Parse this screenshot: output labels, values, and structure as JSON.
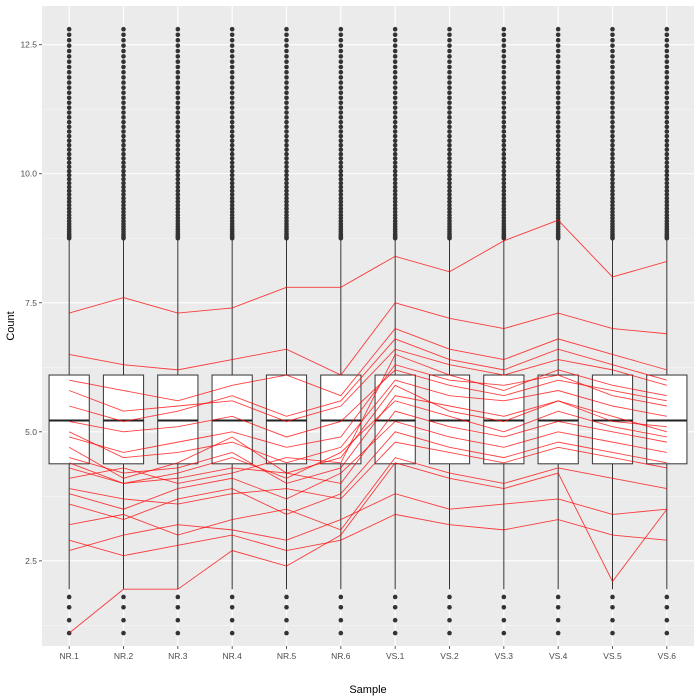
{
  "chart_data": {
    "type": "boxplot",
    "title": "",
    "xlabel": "Sample",
    "ylabel": "Count",
    "ylim": [
      0.85,
      13.25
    ],
    "yticks": [
      2.5,
      5.0,
      7.5,
      10.0,
      12.5
    ],
    "ytick_labels": [
      "2.5",
      "5.0",
      "7.5",
      "10.0",
      "12.5"
    ],
    "categories": [
      "NR.1",
      "NR.2",
      "NR.3",
      "NR.4",
      "NR.5",
      "NR.6",
      "VS.1",
      "VS.2",
      "VS.3",
      "VS.4",
      "VS.5",
      "VS.6"
    ],
    "grid": true,
    "legend": "none",
    "box": {
      "q1": 4.38,
      "median": 5.22,
      "q3": 6.1,
      "whisker_low": 1.95,
      "whisker_high": 8.72
    },
    "outliers_low": [
      1.1,
      1.35,
      1.6,
      1.8
    ],
    "outliers_high_range": [
      8.75,
      12.8
    ],
    "profile_lines": {
      "color": "#ff0000",
      "values": [
        [
          4.3,
          4.0,
          4.2,
          4.5,
          4.1,
          4.6,
          5.6,
          5.3,
          5.0,
          5.4,
          5.1,
          4.9
        ],
        [
          5.0,
          4.5,
          4.6,
          4.8,
          4.4,
          4.7,
          6.0,
          5.7,
          5.6,
          5.8,
          5.5,
          5.3
        ],
        [
          3.8,
          3.5,
          3.9,
          4.1,
          3.7,
          4.2,
          5.2,
          4.9,
          4.7,
          5.0,
          4.8,
          4.6
        ],
        [
          6.5,
          6.3,
          6.2,
          6.4,
          6.6,
          6.1,
          7.5,
          7.2,
          7.0,
          7.3,
          7.0,
          6.9
        ],
        [
          2.7,
          3.0,
          3.2,
          3.1,
          2.9,
          3.3,
          3.8,
          3.5,
          3.6,
          3.7,
          3.4,
          3.5
        ],
        [
          7.3,
          7.6,
          7.3,
          7.4,
          7.8,
          7.8,
          8.4,
          8.1,
          8.7,
          9.1,
          8.0,
          8.3
        ],
        [
          4.1,
          4.3,
          4.0,
          4.2,
          4.5,
          4.4,
          6.5,
          6.1,
          5.8,
          6.2,
          5.9,
          5.7
        ],
        [
          5.5,
          5.2,
          5.4,
          5.7,
          5.3,
          5.6,
          6.8,
          6.4,
          6.2,
          6.6,
          6.3,
          6.0
        ],
        [
          3.2,
          3.4,
          3.0,
          3.3,
          3.5,
          3.1,
          4.5,
          4.2,
          4.0,
          4.3,
          4.1,
          3.9
        ],
        [
          4.7,
          4.1,
          4.4,
          4.9,
          4.2,
          4.5,
          5.9,
          5.4,
          5.2,
          5.6,
          5.3,
          5.0
        ],
        [
          1.1,
          1.95,
          1.95,
          2.7,
          2.4,
          3.0,
          4.4,
          4.1,
          3.9,
          4.2,
          2.1,
          3.5
        ],
        [
          6.0,
          5.8,
          5.6,
          5.9,
          6.1,
          5.7,
          7.0,
          6.6,
          6.4,
          6.8,
          6.5,
          6.2
        ],
        [
          3.6,
          3.3,
          3.7,
          3.9,
          3.4,
          3.8,
          5.0,
          4.7,
          4.5,
          4.8,
          4.6,
          4.4
        ],
        [
          4.5,
          4.2,
          4.3,
          4.6,
          4.0,
          4.3,
          5.7,
          5.5,
          5.3,
          5.6,
          5.2,
          5.1
        ],
        [
          5.2,
          5.0,
          5.1,
          5.3,
          4.9,
          5.2,
          6.2,
          5.9,
          5.7,
          6.0,
          5.8,
          5.6
        ],
        [
          2.9,
          2.6,
          2.8,
          3.0,
          2.7,
          2.9,
          3.4,
          3.2,
          3.1,
          3.3,
          3.0,
          2.9
        ],
        [
          4.9,
          4.6,
          4.8,
          5.0,
          4.7,
          4.9,
          6.3,
          6.0,
          5.9,
          6.1,
          5.7,
          5.5
        ],
        [
          3.9,
          3.7,
          3.6,
          3.8,
          3.9,
          3.7,
          4.8,
          4.6,
          4.4,
          4.7,
          4.5,
          4.3
        ],
        [
          5.8,
          5.4,
          5.5,
          5.6,
          5.2,
          5.5,
          6.6,
          6.3,
          6.1,
          6.4,
          6.2,
          5.9
        ],
        [
          4.4,
          4.0,
          4.1,
          4.3,
          4.2,
          4.0,
          5.4,
          5.1,
          4.9,
          5.2,
          5.0,
          4.8
        ]
      ]
    }
  }
}
